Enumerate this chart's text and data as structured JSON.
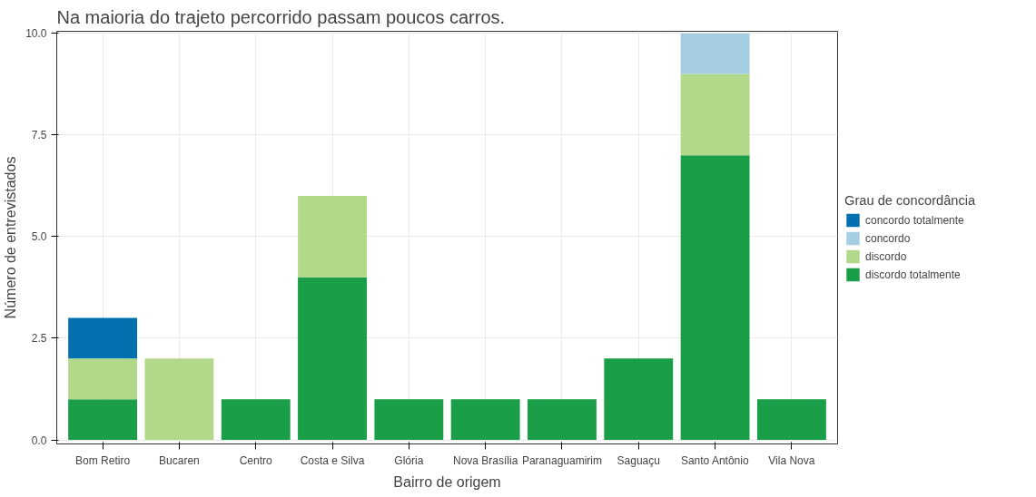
{
  "chart_data": {
    "type": "bar",
    "stacked": true,
    "title": "Na maioria do trajeto percorrido passam poucos carros.",
    "xlabel": "Bairro de origem",
    "ylabel": "Número de entrevistados",
    "legend_title": "Grau de concordância",
    "categories": [
      "Bom Retiro",
      "Bucaren",
      "Centro",
      "Costa e Silva",
      "Glória",
      "Nova Brasília",
      "Paranaguamirim",
      "Saguaçu",
      "Santo Antônio",
      "Vila Nova"
    ],
    "series": [
      {
        "name": "discordo totalmente",
        "color": "#1a9e48",
        "values": [
          1,
          0,
          1,
          4,
          1,
          1,
          1,
          2,
          7,
          1
        ]
      },
      {
        "name": "discordo",
        "color": "#b2d98a",
        "values": [
          1,
          2,
          0,
          2,
          0,
          0,
          0,
          0,
          2,
          0
        ]
      },
      {
        "name": "concordo",
        "color": "#a6cee3",
        "values": [
          0,
          0,
          0,
          0,
          0,
          0,
          0,
          0,
          1,
          0
        ]
      },
      {
        "name": "concordo totalmente",
        "color": "#0570b0",
        "values": [
          1,
          0,
          0,
          0,
          0,
          0,
          0,
          0,
          0,
          0
        ]
      }
    ],
    "ylim": [
      -0.1,
      10.05
    ],
    "yticks": [
      {
        "value": 0,
        "label": "0.0"
      },
      {
        "value": 2.5,
        "label": "2.5"
      },
      {
        "value": 5,
        "label": "5.0"
      },
      {
        "value": 7.5,
        "label": "7.5"
      },
      {
        "value": 10,
        "label": "10.0"
      }
    ],
    "grid": true,
    "legend": "right"
  }
}
